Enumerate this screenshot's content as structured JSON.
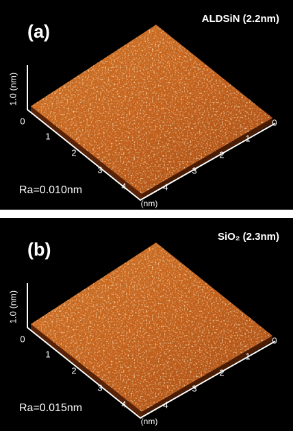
{
  "panels": [
    {
      "label": "(a)",
      "title": "ALDSiN (2.2nm)",
      "z_axis": "1.0 (nm)",
      "z_origin": "0",
      "left_axis": [
        "1",
        "2",
        "3",
        "4"
      ],
      "right_axis": [
        "0",
        "1",
        "2",
        "3",
        "4"
      ],
      "unit": "(nm)",
      "roughness": "Ra=0.010nm"
    },
    {
      "label": "(b)",
      "title": "SiO₂ (2.3nm)",
      "z_axis": "1.0 (nm)",
      "z_origin": "0",
      "left_axis": [
        "1",
        "2",
        "3",
        "4"
      ],
      "right_axis": [
        "0",
        "1",
        "2",
        "3",
        "4"
      ],
      "unit": "(nm)",
      "roughness": "Ra=0.015nm"
    }
  ]
}
